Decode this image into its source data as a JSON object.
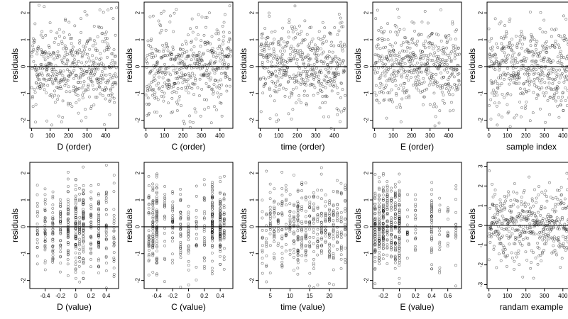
{
  "chart_data": [
    {
      "type": "scatter",
      "xlabel": "D (order)",
      "ylabel": "residuals",
      "xlim": [
        -10,
        470
      ],
      "ylim": [
        -2.3,
        2.4
      ],
      "x_ticks": [
        0,
        100,
        200,
        300,
        400
      ],
      "y_ticks": [
        -2,
        -1,
        0,
        1,
        2
      ],
      "reference_line_y": 0,
      "points": {
        "mode": "index",
        "n": 460,
        "seed": 11
      }
    },
    {
      "type": "scatter",
      "xlabel": "C (order)",
      "ylabel": "residuals",
      "xlim": [
        -10,
        470
      ],
      "ylim": [
        -2.3,
        2.4
      ],
      "x_ticks": [
        0,
        100,
        200,
        300,
        400
      ],
      "y_ticks": [
        -2,
        -1,
        0,
        1,
        2
      ],
      "reference_line_y": 0,
      "points": {
        "mode": "index",
        "n": 460,
        "seed": 23
      }
    },
    {
      "type": "scatter",
      "xlabel": "time (order)",
      "ylabel": "residuals",
      "xlim": [
        -10,
        470
      ],
      "ylim": [
        -2.3,
        2.4
      ],
      "x_ticks": [
        0,
        100,
        200,
        300,
        400
      ],
      "y_ticks": [
        -2,
        -1,
        0,
        1,
        2
      ],
      "reference_line_y": 0,
      "points": {
        "mode": "index",
        "n": 460,
        "seed": 37
      }
    },
    {
      "type": "scatter",
      "xlabel": "E (order)",
      "ylabel": "residuals",
      "xlim": [
        -10,
        470
      ],
      "ylim": [
        -2.3,
        2.4
      ],
      "x_ticks": [
        0,
        100,
        200,
        300,
        400
      ],
      "y_ticks": [
        -2,
        -1,
        0,
        1,
        2
      ],
      "reference_line_y": 0,
      "points": {
        "mode": "index",
        "n": 460,
        "seed": 41
      }
    },
    {
      "type": "scatter",
      "xlabel": "sample index",
      "ylabel": "residuals",
      "xlim": [
        -10,
        470
      ],
      "ylim": [
        -2.3,
        2.4
      ],
      "x_ticks": [
        0,
        100,
        200,
        300,
        400
      ],
      "y_ticks": [
        -2,
        -1,
        0,
        1,
        2
      ],
      "reference_line_y": 0,
      "points": {
        "mode": "index",
        "n": 460,
        "seed": 53
      }
    },
    {
      "type": "scatter",
      "xlabel": "D (value)",
      "ylabel": "residuals",
      "xlim": [
        -0.6,
        0.56
      ],
      "ylim": [
        -2.3,
        2.4
      ],
      "x_ticks": [
        -0.4,
        -0.2,
        0,
        0.2,
        0.4
      ],
      "y_ticks": [
        -2,
        -1,
        0,
        1,
        2
      ],
      "reference_line_y": 0,
      "points": {
        "mode": "clusters",
        "n": 460,
        "seed": 61,
        "x_values": [
          -0.5,
          -0.4,
          -0.3,
          -0.2,
          -0.1,
          0,
          0.05,
          0.1,
          0.2,
          0.3,
          0.4,
          0.5
        ],
        "weights": [
          2,
          3,
          3,
          3,
          3,
          4,
          4,
          5,
          3,
          3,
          2,
          2
        ]
      }
    },
    {
      "type": "scatter",
      "xlabel": "C (value)",
      "ylabel": "residuals",
      "xlim": [
        -0.56,
        0.56
      ],
      "ylim": [
        -2.3,
        2.4
      ],
      "x_ticks": [
        -0.4,
        -0.2,
        0,
        0.2,
        0.4
      ],
      "y_ticks": [
        -2,
        -1,
        0,
        1,
        2
      ],
      "reference_line_y": 0,
      "points": {
        "mode": "clusters",
        "n": 460,
        "seed": 71,
        "x_values": [
          -0.5,
          -0.45,
          -0.4,
          -0.3,
          -0.2,
          -0.1,
          0,
          0.1,
          0.2,
          0.3,
          0.4,
          0.45
        ],
        "weights": [
          2,
          4,
          6,
          2,
          2,
          2,
          2,
          2,
          2,
          4,
          6,
          2
        ]
      }
    },
    {
      "type": "scatter",
      "xlabel": "time (value)",
      "ylabel": "residuals",
      "xlim": [
        2,
        24.5
      ],
      "ylim": [
        -2.3,
        2.4
      ],
      "x_ticks": [
        5,
        10,
        15,
        20
      ],
      "y_ticks": [
        -2,
        -1,
        0,
        1,
        2
      ],
      "reference_line_y": 0,
      "points": {
        "mode": "clusters",
        "n": 460,
        "seed": 83,
        "x_values": [
          3,
          4,
          5,
          6,
          7,
          8,
          9,
          10,
          11,
          12,
          13,
          14,
          15,
          16,
          17,
          18,
          19,
          20,
          21,
          22,
          23,
          24
        ],
        "weights": [
          1,
          2,
          2,
          2,
          2,
          2,
          2,
          2,
          2,
          4,
          2,
          2,
          2,
          2,
          2,
          2,
          2,
          2,
          2,
          2,
          2,
          2
        ]
      }
    },
    {
      "type": "scatter",
      "xlabel": "E (value)",
      "ylabel": "residuals",
      "xlim": [
        -0.33,
        0.77
      ],
      "ylim": [
        -2.3,
        2.4
      ],
      "x_ticks": [
        -0.2,
        0,
        0.2,
        0.4,
        0.6
      ],
      "y_ticks": [
        -2,
        -1,
        0,
        1,
        2
      ],
      "reference_line_y": 0,
      "points": {
        "mode": "clusters",
        "n": 460,
        "seed": 97,
        "x_values": [
          -0.3,
          -0.25,
          -0.2,
          -0.15,
          -0.1,
          -0.05,
          0,
          0.1,
          0.2,
          0.4,
          0.5,
          0.6,
          0.7
        ],
        "weights": [
          5,
          4,
          4,
          3,
          3,
          3,
          4,
          1,
          1,
          3,
          1,
          1,
          1
        ]
      }
    },
    {
      "type": "scatter",
      "xlabel": "randam example",
      "ylabel": "residuals",
      "xlim": [
        -10,
        470
      ],
      "ylim": [
        -3.2,
        3.2
      ],
      "x_ticks": [
        0,
        100,
        200,
        300,
        400
      ],
      "y_ticks": [
        -3,
        -2,
        -1,
        0,
        1,
        2,
        3
      ],
      "reference_line_y": 0,
      "points": {
        "mode": "index",
        "n": 460,
        "seed": 103,
        "sd": 1.0
      }
    }
  ]
}
